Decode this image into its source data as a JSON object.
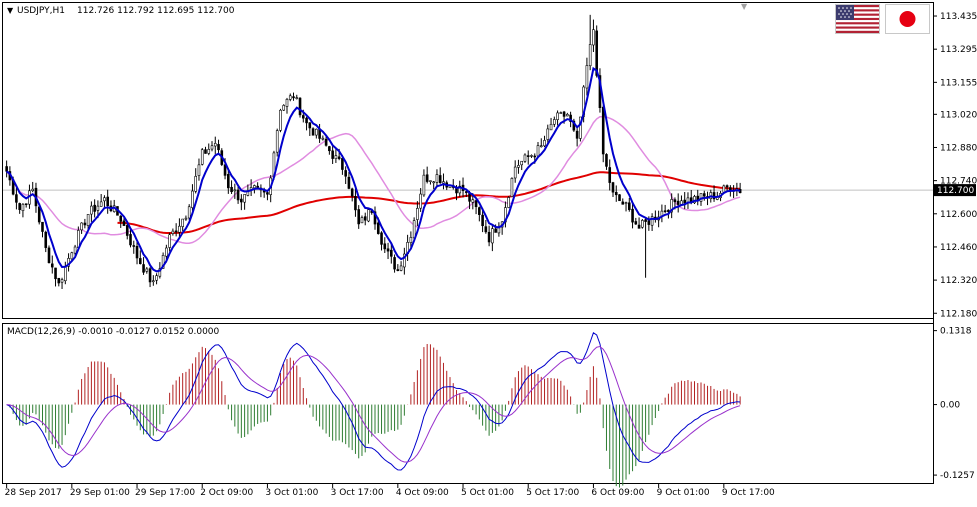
{
  "header": {
    "symbol": "USDJPY,H1",
    "ohlc": "112.726 112.792 112.695 112.700",
    "indicator_label": "MACD(12,26,9) -0.0010 -0.0127 0.0152 0.0000"
  },
  "flags": {
    "base": "us-flag-icon",
    "quote": "jp-flag-icon"
  },
  "colors": {
    "up_candle": "#000000",
    "down_candle": "#000000",
    "ma_fast": "#0000cc",
    "ma_mid": "#e08ce0",
    "ma_slow": "#e00000",
    "hist_pos": "#b22222",
    "hist_neg": "#2e7d32",
    "macd_line": "#0000cc",
    "signal_line": "#9932cc",
    "current_price_bg": "#000000"
  },
  "chart_data": [
    {
      "type": "candlestick",
      "title": "USDJPY,H1",
      "y_ticks": [
        "113.435",
        "113.295",
        "113.155",
        "113.020",
        "112.880",
        "112.740",
        "112.600",
        "112.460",
        "112.320",
        "112.180"
      ],
      "ylim": [
        112.16,
        113.49
      ],
      "current_price": "112.700",
      "overlays": [
        "ma_fast",
        "ma_mid",
        "ma_slow"
      ],
      "anchors": [
        [
          0,
          112.78
        ],
        [
          4,
          112.62
        ],
        [
          8,
          112.7
        ],
        [
          12,
          112.45
        ],
        [
          16,
          112.3
        ],
        [
          20,
          112.45
        ],
        [
          25,
          112.6
        ],
        [
          30,
          112.66
        ],
        [
          35,
          112.58
        ],
        [
          40,
          112.42
        ],
        [
          45,
          112.3
        ],
        [
          50,
          112.5
        ],
        [
          55,
          112.6
        ],
        [
          60,
          112.85
        ],
        [
          64,
          112.9
        ],
        [
          68,
          112.72
        ],
        [
          72,
          112.66
        ],
        [
          76,
          112.7
        ],
        [
          80,
          112.68
        ],
        [
          84,
          113.05
        ],
        [
          88,
          113.1
        ],
        [
          92,
          112.98
        ],
        [
          96,
          112.92
        ],
        [
          100,
          112.85
        ],
        [
          104,
          112.78
        ],
        [
          108,
          112.55
        ],
        [
          112,
          112.62
        ],
        [
          116,
          112.45
        ],
        [
          120,
          112.36
        ],
        [
          124,
          112.52
        ],
        [
          128,
          112.75
        ],
        [
          132,
          112.76
        ],
        [
          136,
          112.72
        ],
        [
          140,
          112.7
        ],
        [
          144,
          112.62
        ],
        [
          148,
          112.5
        ],
        [
          152,
          112.58
        ],
        [
          156,
          112.8
        ],
        [
          160,
          112.84
        ],
        [
          164,
          112.88
        ],
        [
          168,
          113.0
        ],
        [
          172,
          113.02
        ],
        [
          175,
          112.9
        ],
        [
          178,
          113.22
        ],
        [
          180,
          113.38
        ],
        [
          183,
          112.85
        ],
        [
          186,
          112.68
        ],
        [
          190,
          112.63
        ],
        [
          194,
          112.54
        ],
        [
          198,
          112.58
        ],
        [
          202,
          112.62
        ],
        [
          206,
          112.66
        ],
        [
          210,
          112.66
        ],
        [
          214,
          112.67
        ],
        [
          218,
          112.68
        ],
        [
          222,
          112.72
        ],
        [
          225,
          112.7
        ]
      ],
      "volatility": 0.045,
      "x_ticks": [
        {
          "label": "28 Sep 2017",
          "bar": 0
        },
        {
          "label": "29 Sep 01:00",
          "bar": 20
        },
        {
          "label": "29 Sep 17:00",
          "bar": 40
        },
        {
          "label": "2 Oct 09:00",
          "bar": 60
        },
        {
          "label": "3 Oct 01:00",
          "bar": 80
        },
        {
          "label": "3 Oct 17:00",
          "bar": 100
        },
        {
          "label": "4 Oct 09:00",
          "bar": 120
        },
        {
          "label": "5 Oct 01:00",
          "bar": 140
        },
        {
          "label": "5 Oct 17:00",
          "bar": 160
        },
        {
          "label": "6 Oct 09:00",
          "bar": 180
        },
        {
          "label": "9 Oct 01:00",
          "bar": 200
        },
        {
          "label": "9 Oct 17:00",
          "bar": 220
        }
      ]
    },
    {
      "type": "macd",
      "title": "MACD(12,26,9) -0.0010 -0.0127 0.0152 0.0000",
      "y_ticks": [
        "0.1318",
        "0.00",
        "-0.1257"
      ],
      "ylim": [
        -0.1398,
        0.1436
      ],
      "series": [
        "histogram",
        "macd",
        "signal"
      ]
    }
  ]
}
